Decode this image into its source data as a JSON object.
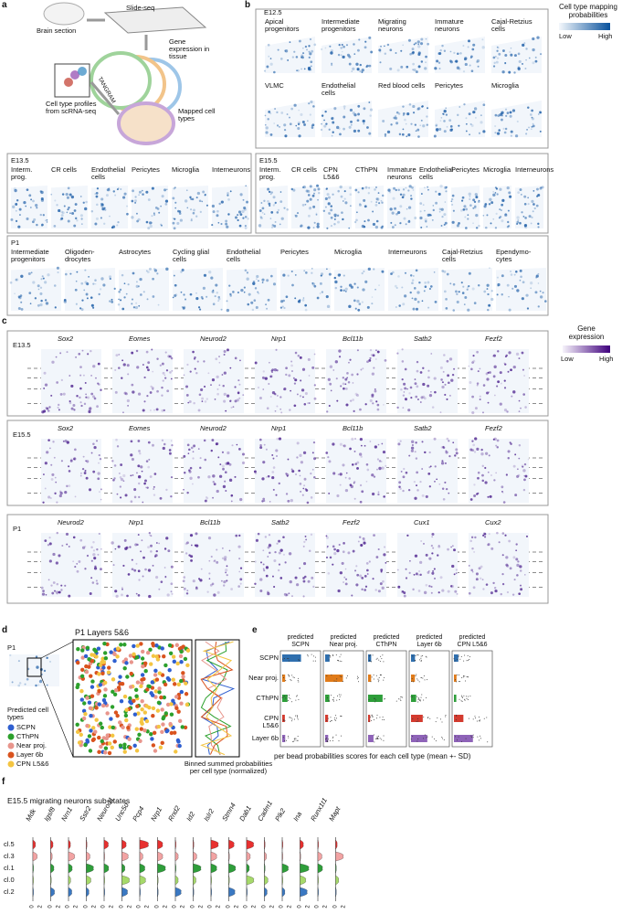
{
  "panel_a": {
    "label": "a",
    "slide_seq": "Slide-seq",
    "brain_section": "Brain section",
    "gene_expression": "Gene expression in tissue",
    "tangram": "TANGRAM",
    "profiles": "Cell type profiles from scRNA-seq",
    "mapped": "Mapped cell types"
  },
  "panel_b": {
    "label": "b",
    "legend_title": "Cell type mapping probabilities",
    "legend_low": "Low",
    "legend_high": "High",
    "e12": {
      "stage": "E12.5",
      "cell_types": [
        "Apical progenitors",
        "Intermediate progenitors",
        "Migrating neurons",
        "Immature neurons",
        "Cajal-Retzius cells",
        "VLMC",
        "Endothelial cells",
        "Red blood cells",
        "Pericytes",
        "Microglia"
      ]
    },
    "e13": {
      "stage": "E13.5",
      "cell_types": [
        "Interm. prog.",
        "CR cells",
        "Endothelial cells",
        "Pericytes",
        "Microglia",
        "Interneurons"
      ]
    },
    "e15": {
      "stage": "E15.5",
      "cell_types": [
        "Interm. prog.",
        "CR cells",
        "CPN L5&6",
        "CThPN",
        "Immature neurons",
        "Endothelial cells",
        "Pericytes",
        "Microglia",
        "Interneurons"
      ]
    },
    "p1": {
      "stage": "P1",
      "cell_types": [
        "Intermediate progenitors",
        "Oligoden-drocytes",
        "Astrocytes",
        "Cycling glial cells",
        "Endothelial cells",
        "Pericytes",
        "Microglia",
        "Interneurons",
        "Cajal-Retzius cells",
        "Ependymo-cytes"
      ]
    }
  },
  "panel_c": {
    "label": "c",
    "legend_title": "Gene expression",
    "legend_low": "Low",
    "legend_high": "High",
    "rows": [
      {
        "stage": "E13.5",
        "genes": [
          "Sox2",
          "Eomes",
          "Neurod2",
          "Nrp1",
          "Bcl11b",
          "Satb2",
          "Fezf2"
        ]
      },
      {
        "stage": "E15.5",
        "genes": [
          "Sox2",
          "Eomes",
          "Neurod2",
          "Nrp1",
          "Bcl11b",
          "Satb2",
          "Fezf2"
        ]
      },
      {
        "stage": "P1",
        "genes": [
          "Neurod2",
          "Nrp1",
          "Bcl11b",
          "Satb2",
          "Fezf2",
          "Cux1",
          "Cux2"
        ]
      }
    ]
  },
  "panel_d": {
    "label": "d",
    "stage": "P1",
    "title": "P1 Layers 5&6",
    "legend_title": "Predicted cell types",
    "cell_types": [
      {
        "name": "SCPN",
        "color": "#2f5fd0"
      },
      {
        "name": "CThPN",
        "color": "#2ca02c"
      },
      {
        "name": "Near proj.",
        "color": "#e8958c"
      },
      {
        "name": "Layer 6b",
        "color": "#d9531e"
      },
      {
        "name": "CPN L5&6",
        "color": "#f4c542"
      }
    ],
    "caption": "Binned summed probabilities per cell type (normalized)"
  },
  "panel_e": {
    "label": "e",
    "columns": [
      "predicted SCPN",
      "predicted Near proj.",
      "predicted CThPN",
      "predicted Layer 6b",
      "predicted CPN L5&6"
    ],
    "column_colors": [
      "#2f6fae",
      "#e07b1a",
      "#2e9e3a",
      "#2e9e3a",
      "#d33b2f"
    ],
    "rows": [
      "SCPN",
      "Near proj.",
      "CThPN",
      "CPN L5&6",
      "Layer 6b"
    ],
    "row_colors": [
      "#2f6fae",
      "#e07b1a",
      "#2e9e3a",
      "#d33b2f",
      "#8e63b8"
    ],
    "caption": "per bead probabilities scores for each cell type (mean +- SD)"
  },
  "panel_f": {
    "label": "f",
    "title": "E15.5 migrating neurons sub-states",
    "genes": [
      "Mdk",
      "Igsf8",
      "Nrn1",
      "Sstr2",
      "Neurod1",
      "Unc5d",
      "Pcp4",
      "Nrp1",
      "Rnd2",
      "Id2",
      "Islr2",
      "Stmn4",
      "Dab1",
      "Cadm1",
      "Plk2",
      "Ina",
      "Runx1t1",
      "Mapt"
    ],
    "clusters": [
      {
        "name": "cl.5",
        "color": "#e8302f"
      },
      {
        "name": "cl.3",
        "color": "#f2a3a3"
      },
      {
        "name": "cl.1",
        "color": "#2e9e3a"
      },
      {
        "name": "cl.0",
        "color": "#a6d96a"
      },
      {
        "name": "cl.2",
        "color": "#3a78c2"
      }
    ],
    "tick_labels": [
      "0",
      "2"
    ]
  }
}
